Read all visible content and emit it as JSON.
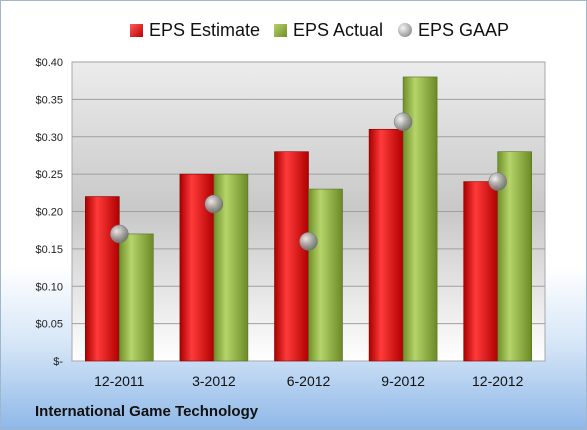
{
  "legend": {
    "estimate": "EPS Estimate",
    "actual": "EPS Actual",
    "gaap": "EPS GAAP"
  },
  "company": "International Game Technology",
  "colors": {
    "estimate": "#d81818",
    "actual": "#9bbb59",
    "gaap": "#a6a6a6"
  },
  "chart_data": {
    "type": "bar",
    "categories": [
      "12-2011",
      "3-2012",
      "6-2012",
      "9-2012",
      "12-2012"
    ],
    "series": [
      {
        "name": "EPS Estimate",
        "values": [
          0.22,
          0.25,
          0.28,
          0.31,
          0.24
        ]
      },
      {
        "name": "EPS Actual",
        "values": [
          0.17,
          0.25,
          0.23,
          0.38,
          0.28
        ]
      },
      {
        "name": "EPS GAAP",
        "values": [
          0.17,
          0.21,
          0.16,
          0.32,
          0.24
        ],
        "marker": "sphere"
      }
    ],
    "yticks": [
      "$-",
      "$0.05",
      "$0.10",
      "$0.15",
      "$0.20",
      "$0.25",
      "$0.30",
      "$0.35",
      "$0.40"
    ],
    "ylim": [
      0,
      0.4
    ],
    "grid": true,
    "legend_position": "top"
  }
}
